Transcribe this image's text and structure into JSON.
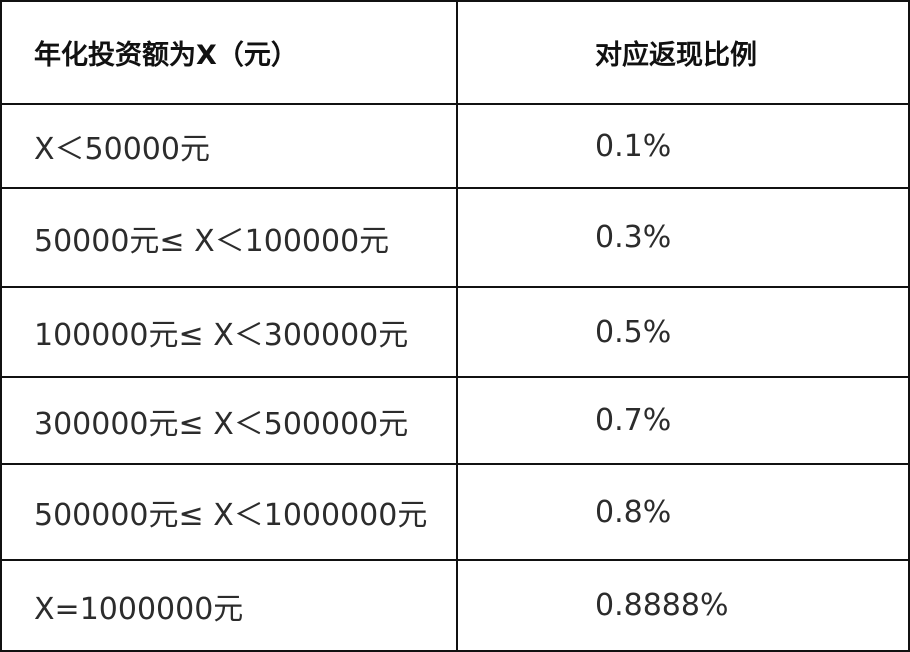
{
  "table": {
    "headers": [
      "年化投资额为X（元）",
      "对应返现比例"
    ],
    "rows": [
      [
        "X＜50000元",
        "0.1%"
      ],
      [
        "50000元≤ X＜100000元",
        "0.3%"
      ],
      [
        "100000元≤ X＜300000元",
        "0.5%"
      ],
      [
        "300000元≤ X＜500000元",
        "0.7%"
      ],
      [
        "500000元≤ X＜1000000元",
        "0.8%"
      ],
      [
        "X=1000000元",
        "0.8888%"
      ]
    ]
  }
}
